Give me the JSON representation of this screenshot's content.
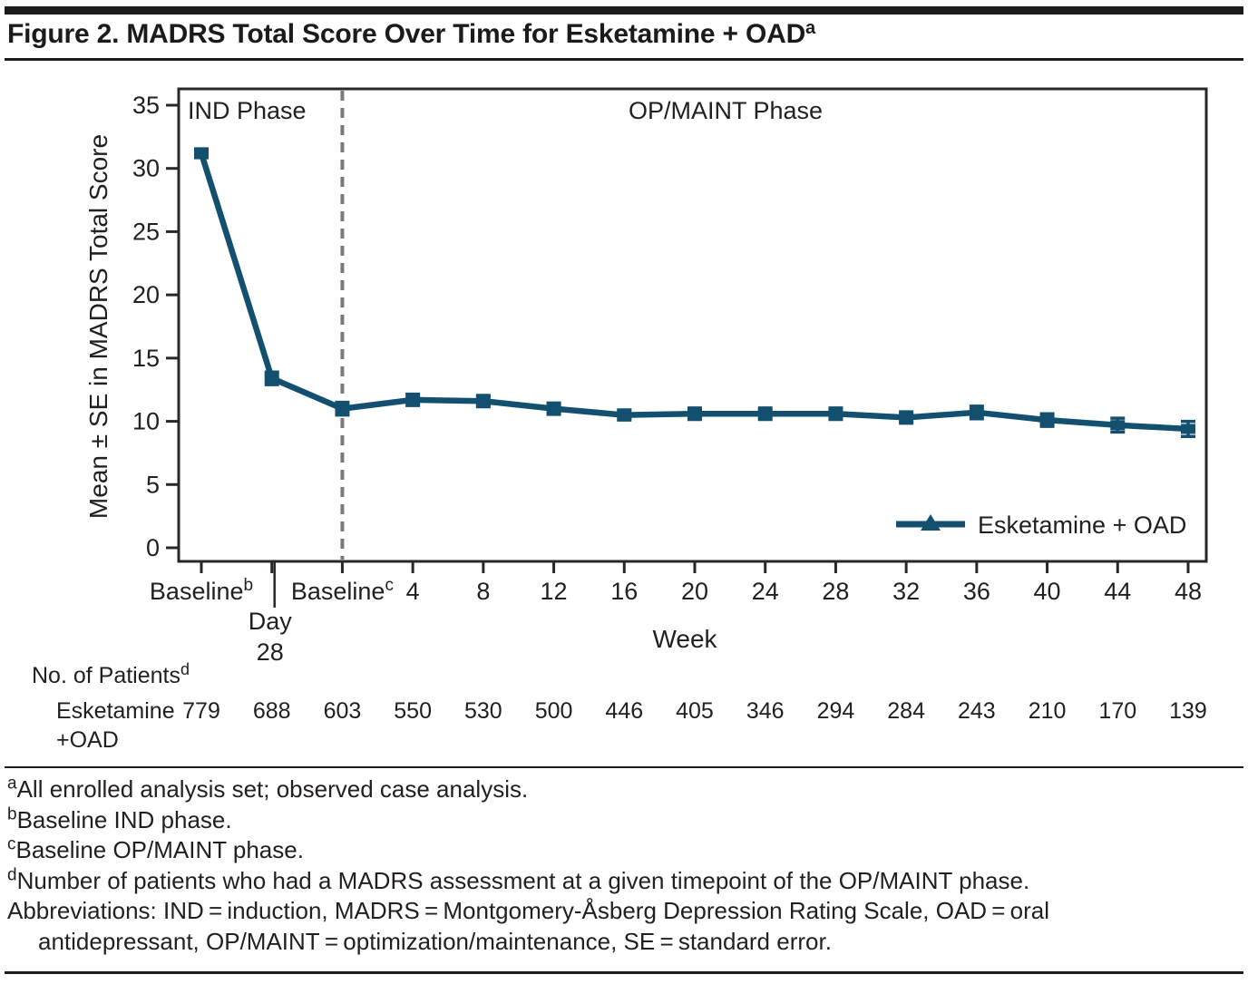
{
  "figure": {
    "title": "Figure 2. MADRS Total Score Over Time for Esketamine + OAD",
    "title_sup": "a"
  },
  "chart_data": {
    "type": "line",
    "title": "",
    "xlabel": "Week",
    "ylabel": "Mean ± SE in MADRS Total Score",
    "ylim": [
      0,
      35
    ],
    "ytick_step": 5,
    "grid": false,
    "legend_position": "inside-bottom-right",
    "categories": [
      "Baseline (IND)",
      "Day 28",
      "Baseline (OP/MAINT)",
      "4",
      "8",
      "12",
      "16",
      "20",
      "24",
      "28",
      "32",
      "36",
      "40",
      "44",
      "48"
    ],
    "x_tick_display": [
      {
        "text": "Baseline",
        "sup": "b"
      },
      {
        "text": "",
        "sup": ""
      },
      {
        "text": "Baseline",
        "sup": "c"
      },
      {
        "text": "4"
      },
      {
        "text": "8"
      },
      {
        "text": "12"
      },
      {
        "text": "16"
      },
      {
        "text": "20"
      },
      {
        "text": "24"
      },
      {
        "text": "28"
      },
      {
        "text": "32"
      },
      {
        "text": "36"
      },
      {
        "text": "40"
      },
      {
        "text": "44"
      },
      {
        "text": "48"
      }
    ],
    "day28_label": {
      "line1": "Day",
      "line2": "28",
      "tick_index": 1
    },
    "dashed_divider_at_index": 2,
    "phase_labels": {
      "left": "IND Phase",
      "right": "OP/MAINT Phase"
    },
    "series": [
      {
        "name": "Esketamine + OAD",
        "values": [
          31.2,
          13.4,
          11.0,
          11.7,
          11.6,
          11.0,
          10.5,
          10.6,
          10.6,
          10.6,
          10.3,
          10.7,
          10.1,
          9.7,
          9.4
        ],
        "se": [
          0.35,
          0.5,
          0.5,
          0.45,
          0.45,
          0.45,
          0.4,
          0.45,
          0.45,
          0.45,
          0.45,
          0.5,
          0.5,
          0.55,
          0.6
        ]
      }
    ]
  },
  "patients": {
    "heading": "No. of Patients",
    "heading_sup": "d",
    "row_label_line1": "Esketamine",
    "row_label_line2": "+OAD",
    "counts": [
      "779",
      "688",
      "603",
      "550",
      "530",
      "500",
      "446",
      "405",
      "346",
      "294",
      "284",
      "243",
      "210",
      "170",
      "139"
    ]
  },
  "footnotes": [
    {
      "sup": "a",
      "text": "All enrolled analysis set; observed case analysis.",
      "indent": false
    },
    {
      "sup": "b",
      "text": "Baseline IND phase.",
      "indent": false
    },
    {
      "sup": "c",
      "text": "Baseline OP/MAINT phase.",
      "indent": false
    },
    {
      "sup": "d",
      "text": "Number of patients who had a MADRS assessment at a given timepoint of the OP/MAINT phase.",
      "indent": false
    },
    {
      "sup": "",
      "text": "Abbreviations: IND = induction, MADRS = Montgomery-Åsberg Depression Rating Scale, OAD = oral",
      "indent": false
    },
    {
      "sup": "",
      "text": "antidepressant, OP/MAINT = optimization/maintenance, SE = standard error.",
      "indent": true
    }
  ],
  "colors": {
    "series": "#13506F",
    "axis": "#2b2728",
    "text": "#231f20",
    "dashed_divider": "#7a7a7a",
    "rule": "#1c1a1b"
  }
}
